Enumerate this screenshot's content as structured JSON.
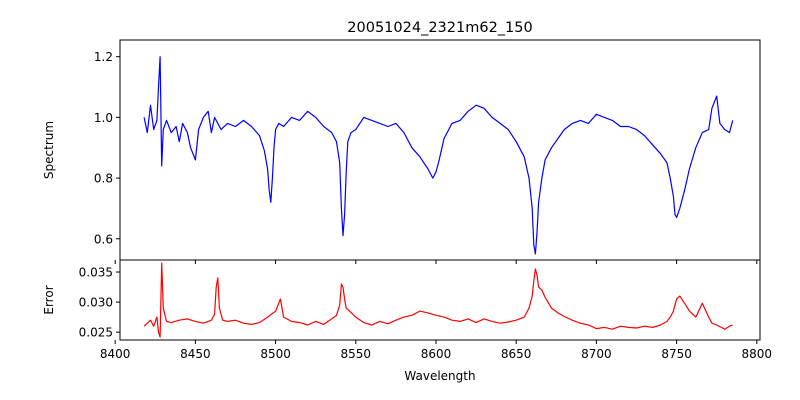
{
  "chart_data": [
    {
      "type": "line",
      "title": "20051024_2321m62_150",
      "xlabel": "",
      "ylabel": "Spectrum",
      "xlim": [
        8403,
        8802
      ],
      "ylim": [
        0.53,
        1.255
      ],
      "xticks": [
        8400,
        8450,
        8500,
        8550,
        8600,
        8650,
        8700,
        8750,
        8800
      ],
      "yticks": [
        0.6,
        0.8,
        1.0,
        1.2
      ],
      "ytick_labels": [
        "0.6",
        "0.8",
        "1.0",
        "1.2"
      ],
      "grid": false,
      "series": [
        {
          "color": "#0000ff",
          "x": [
            8418,
            8420,
            8422,
            8424,
            8426,
            8427,
            8428,
            8429,
            8430,
            8432,
            8435,
            8438,
            8440,
            8442,
            8445,
            8447,
            8450,
            8452,
            8455,
            8458,
            8460,
            8462,
            8464,
            8466,
            8470,
            8475,
            8480,
            8485,
            8490,
            8493,
            8495,
            8496,
            8497,
            8498,
            8499,
            8500,
            8502,
            8505,
            8510,
            8515,
            8520,
            8525,
            8530,
            8535,
            8538,
            8540,
            8541,
            8542,
            8543,
            8544,
            8545,
            8547,
            8550,
            8555,
            8560,
            8565,
            8570,
            8575,
            8580,
            8585,
            8590,
            8595,
            8598,
            8600,
            8602,
            8605,
            8610,
            8615,
            8620,
            8625,
            8630,
            8635,
            8640,
            8645,
            8650,
            8655,
            8658,
            8660,
            8661,
            8662,
            8663,
            8664,
            8666,
            8668,
            8672,
            8676,
            8680,
            8685,
            8690,
            8695,
            8700,
            8705,
            8710,
            8715,
            8720,
            8725,
            8730,
            8735,
            8740,
            8744,
            8746,
            8748,
            8749,
            8750,
            8752,
            8755,
            8758,
            8762,
            8766,
            8770,
            8772,
            8775,
            8777,
            8780,
            8783,
            8785
          ],
          "y": [
            1.0,
            0.95,
            1.04,
            0.96,
            0.99,
            1.1,
            1.2,
            0.84,
            0.96,
            0.99,
            0.95,
            0.97,
            0.92,
            0.98,
            0.95,
            0.9,
            0.86,
            0.96,
            1.0,
            1.02,
            0.95,
            1.0,
            0.98,
            0.96,
            0.98,
            0.97,
            0.99,
            0.97,
            0.94,
            0.89,
            0.83,
            0.76,
            0.72,
            0.8,
            0.9,
            0.96,
            0.98,
            0.97,
            1.0,
            0.99,
            1.02,
            1.0,
            0.97,
            0.95,
            0.92,
            0.85,
            0.7,
            0.61,
            0.68,
            0.82,
            0.92,
            0.95,
            0.96,
            1.0,
            0.99,
            0.98,
            0.97,
            0.98,
            0.95,
            0.9,
            0.87,
            0.83,
            0.8,
            0.82,
            0.86,
            0.93,
            0.98,
            0.99,
            1.02,
            1.04,
            1.03,
            1.0,
            0.98,
            0.96,
            0.92,
            0.87,
            0.8,
            0.7,
            0.58,
            0.55,
            0.62,
            0.72,
            0.8,
            0.86,
            0.9,
            0.93,
            0.96,
            0.98,
            0.99,
            0.98,
            1.01,
            1.0,
            0.99,
            0.97,
            0.97,
            0.96,
            0.94,
            0.91,
            0.88,
            0.85,
            0.8,
            0.74,
            0.68,
            0.67,
            0.7,
            0.76,
            0.83,
            0.9,
            0.95,
            0.96,
            1.03,
            1.07,
            0.98,
            0.96,
            0.95,
            0.99
          ]
        }
      ]
    },
    {
      "type": "line",
      "title": "",
      "xlabel": "Wavelength",
      "ylabel": "Error",
      "xlim": [
        8403,
        8802
      ],
      "ylim": [
        0.0237,
        0.037
      ],
      "xticks": [
        8400,
        8450,
        8500,
        8550,
        8600,
        8650,
        8700,
        8750,
        8800
      ],
      "xtick_labels": [
        "8400",
        "8450",
        "8500",
        "8550",
        "8600",
        "8650",
        "8700",
        "8750",
        "8800"
      ],
      "yticks": [
        0.025,
        0.03,
        0.035
      ],
      "ytick_labels": [
        "0.025",
        "0.030",
        "0.035"
      ],
      "grid": false,
      "series": [
        {
          "color": "#ff0000",
          "x": [
            8418,
            8420,
            8422,
            8424,
            8426,
            8427,
            8428,
            8429,
            8430,
            8432,
            8435,
            8440,
            8445,
            8450,
            8455,
            8460,
            8462,
            8463,
            8464,
            8465,
            8467,
            8470,
            8475,
            8480,
            8485,
            8490,
            8495,
            8500,
            8503,
            8505,
            8510,
            8515,
            8520,
            8525,
            8530,
            8535,
            8538,
            8540,
            8541,
            8542,
            8543,
            8544,
            8546,
            8550,
            8555,
            8560,
            8565,
            8570,
            8575,
            8580,
            8585,
            8590,
            8595,
            8600,
            8605,
            8610,
            8615,
            8620,
            8625,
            8630,
            8635,
            8640,
            8645,
            8650,
            8655,
            8658,
            8660,
            8661,
            8662,
            8663,
            8664,
            8666,
            8668,
            8672,
            8676,
            8680,
            8685,
            8690,
            8695,
            8700,
            8705,
            8710,
            8715,
            8720,
            8725,
            8730,
            8735,
            8740,
            8744,
            8746,
            8748,
            8750,
            8752,
            8755,
            8758,
            8762,
            8766,
            8770,
            8772,
            8775,
            8778,
            8780,
            8783,
            8785
          ],
          "y": [
            0.026,
            0.0265,
            0.027,
            0.026,
            0.0275,
            0.025,
            0.0242,
            0.0365,
            0.029,
            0.0268,
            0.0266,
            0.027,
            0.0272,
            0.0268,
            0.0265,
            0.027,
            0.028,
            0.0325,
            0.034,
            0.029,
            0.027,
            0.0268,
            0.027,
            0.0265,
            0.0263,
            0.0266,
            0.0275,
            0.0285,
            0.0305,
            0.0275,
            0.0268,
            0.0266,
            0.0262,
            0.0268,
            0.0263,
            0.0272,
            0.0278,
            0.0295,
            0.033,
            0.0325,
            0.0305,
            0.029,
            0.0285,
            0.0275,
            0.0266,
            0.0262,
            0.0268,
            0.0264,
            0.027,
            0.0275,
            0.0278,
            0.0285,
            0.0282,
            0.0278,
            0.0275,
            0.027,
            0.0268,
            0.0272,
            0.0266,
            0.0272,
            0.0268,
            0.0265,
            0.0267,
            0.027,
            0.0275,
            0.029,
            0.031,
            0.0335,
            0.0355,
            0.0345,
            0.0325,
            0.032,
            0.0308,
            0.029,
            0.0282,
            0.0276,
            0.027,
            0.0265,
            0.0262,
            0.0256,
            0.0258,
            0.0255,
            0.026,
            0.0258,
            0.0257,
            0.026,
            0.0258,
            0.0262,
            0.0268,
            0.0275,
            0.0285,
            0.0305,
            0.031,
            0.0298,
            0.0285,
            0.0275,
            0.0298,
            0.0275,
            0.0265,
            0.0262,
            0.0258,
            0.0255,
            0.026,
            0.0262
          ]
        }
      ]
    }
  ]
}
